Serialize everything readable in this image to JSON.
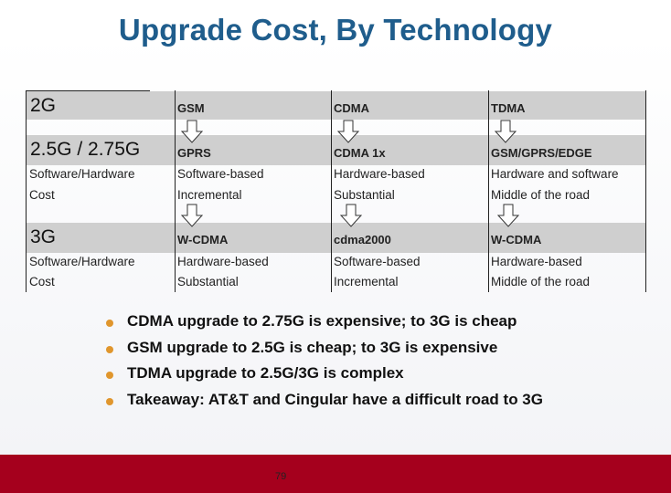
{
  "title": "Upgrade Cost, By Technology",
  "table": {
    "rows": [
      {
        "label": "2G",
        "cells": [
          "GSM",
          "CDMA",
          "TDMA"
        ]
      },
      {
        "label": "2.5G / 2.75G",
        "cells": [
          "GPRS",
          "CDMA 1x",
          "GSM/GPRS/EDGE"
        ]
      },
      {
        "label": "Software/Hardware",
        "cells": [
          "Software-based",
          "Hardware-based",
          "Hardware and software"
        ]
      },
      {
        "label": "Cost",
        "cells": [
          "Incremental",
          "Substantial",
          "Middle of the road"
        ]
      },
      {
        "label": "3G",
        "cells": [
          "W-CDMA",
          "cdma2000",
          "W-CDMA"
        ]
      },
      {
        "label": "Software/Hardware",
        "cells": [
          "Hardware-based",
          "Software-based",
          "Hardware-based"
        ]
      },
      {
        "label": "Cost",
        "cells": [
          "Substantial",
          "Incremental",
          "Middle of the road"
        ]
      }
    ]
  },
  "bullets": [
    "CDMA upgrade to 2.75G is expensive; to 3G is cheap",
    "GSM upgrade to 2.5G is cheap; to 3G is expensive",
    "TDMA upgrade to 2.5G/3G is complex",
    "Takeaway: AT&T and Cingular have a difficult road to 3G"
  ],
  "colors": {
    "title": "#1f5d8c",
    "stripe": "#cfcfcf",
    "bullet": "#e0962d",
    "footer": "#a5001d"
  },
  "icons": [
    "down-arrow-icon"
  ],
  "page_number": "79"
}
